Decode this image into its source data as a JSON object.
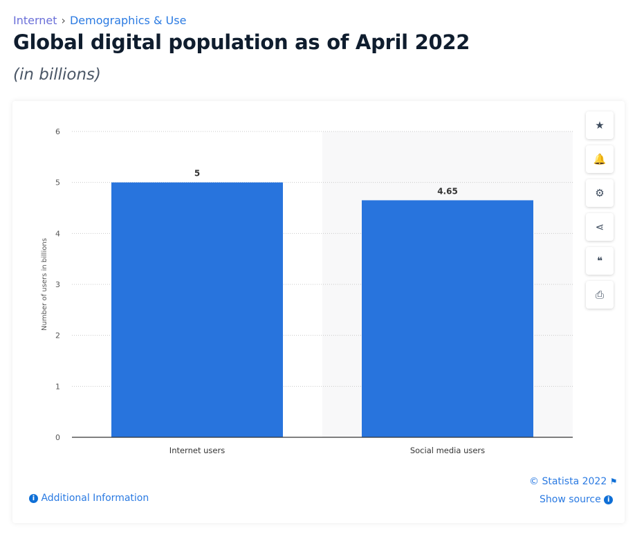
{
  "breadcrumb": {
    "items": [
      "Internet",
      "Demographics & Use"
    ],
    "separator": "›"
  },
  "title": "Global digital population as of April 2022",
  "subtitle": "(in billions)",
  "toolbar": [
    {
      "name": "favorite",
      "icon": "star-icon",
      "glyph": "★"
    },
    {
      "name": "notification",
      "icon": "bell-icon",
      "glyph": "🔔"
    },
    {
      "name": "settings",
      "icon": "gear-icon",
      "glyph": "⚙"
    },
    {
      "name": "share",
      "icon": "share-icon",
      "glyph": "⋖"
    },
    {
      "name": "cite",
      "icon": "quote-icon",
      "glyph": "❝"
    },
    {
      "name": "print",
      "icon": "printer-icon",
      "glyph": "⎙"
    }
  ],
  "footer": {
    "additional_info": "Additional Information",
    "copyright": "© Statista 2022",
    "show_source": "Show source"
  },
  "colors": {
    "bar": "#2874dd",
    "link": "#2a7ae2",
    "title": "#0f1d2e"
  },
  "chart_data": {
    "type": "bar",
    "categories": [
      "Internet users",
      "Social media users"
    ],
    "values": [
      5,
      4.65
    ],
    "data_labels": [
      "5",
      "4.65"
    ],
    "ylabel": "Number of users in billions",
    "xlabel": "",
    "ylim": [
      0,
      6
    ],
    "yticks": [
      0,
      1,
      2,
      3,
      4,
      5,
      6
    ],
    "grid": true
  }
}
